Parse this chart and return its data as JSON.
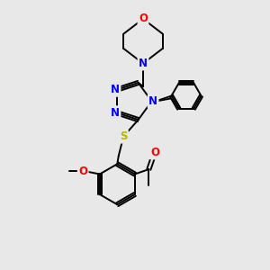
{
  "bg_color": "#e8e8e8",
  "atom_colors": {
    "N": "#0000ff",
    "O": "#ff0000",
    "S": "#b8b800",
    "C": "#000000"
  },
  "bond_color": "#000000",
  "bond_width": 1.4,
  "font_size_atom": 8.5
}
